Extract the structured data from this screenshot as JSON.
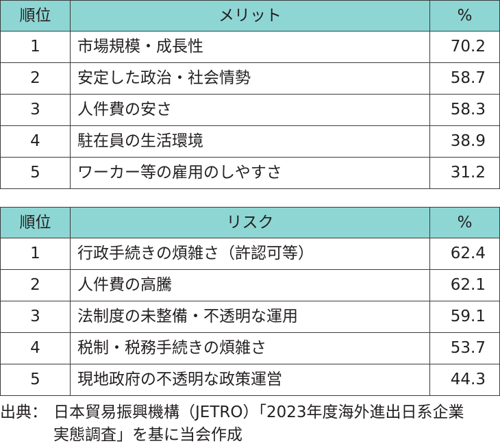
{
  "merits": {
    "header": {
      "rank": "順位",
      "item": "メリット",
      "pct": "%"
    },
    "rows": [
      {
        "rank": "1",
        "item": "市場規模・成長性",
        "pct": "70.2"
      },
      {
        "rank": "2",
        "item": "安定した政治・社会情勢",
        "pct": "58.7"
      },
      {
        "rank": "3",
        "item": "人件費の安さ",
        "pct": "58.3"
      },
      {
        "rank": "4",
        "item": "駐在員の生活環境",
        "pct": "38.9"
      },
      {
        "rank": "5",
        "item": "ワーカー等の雇用のしやすさ",
        "pct": "31.2"
      }
    ]
  },
  "risks": {
    "header": {
      "rank": "順位",
      "item": "リスク",
      "pct": "%"
    },
    "rows": [
      {
        "rank": "1",
        "item": "行政手続きの煩雑さ（許認可等）",
        "pct": "62.4"
      },
      {
        "rank": "2",
        "item": "人件費の高騰",
        "pct": "62.1"
      },
      {
        "rank": "3",
        "item": "法制度の未整備・不透明な運用",
        "pct": "59.1"
      },
      {
        "rank": "4",
        "item": "税制・税務手続きの煩雑さ",
        "pct": "53.7"
      },
      {
        "rank": "5",
        "item": "現地政府の不透明な政策運営",
        "pct": "44.3"
      }
    ]
  },
  "source": {
    "label": "出典：",
    "line1": "日本貿易振興機構（JETRO）「2023年度海外進出日系企業",
    "line2": "実態調査」を基に当会作成"
  },
  "colors": {
    "header_bg": "#8ed6d3",
    "border": "#3a3a3a",
    "text": "#231f20"
  }
}
